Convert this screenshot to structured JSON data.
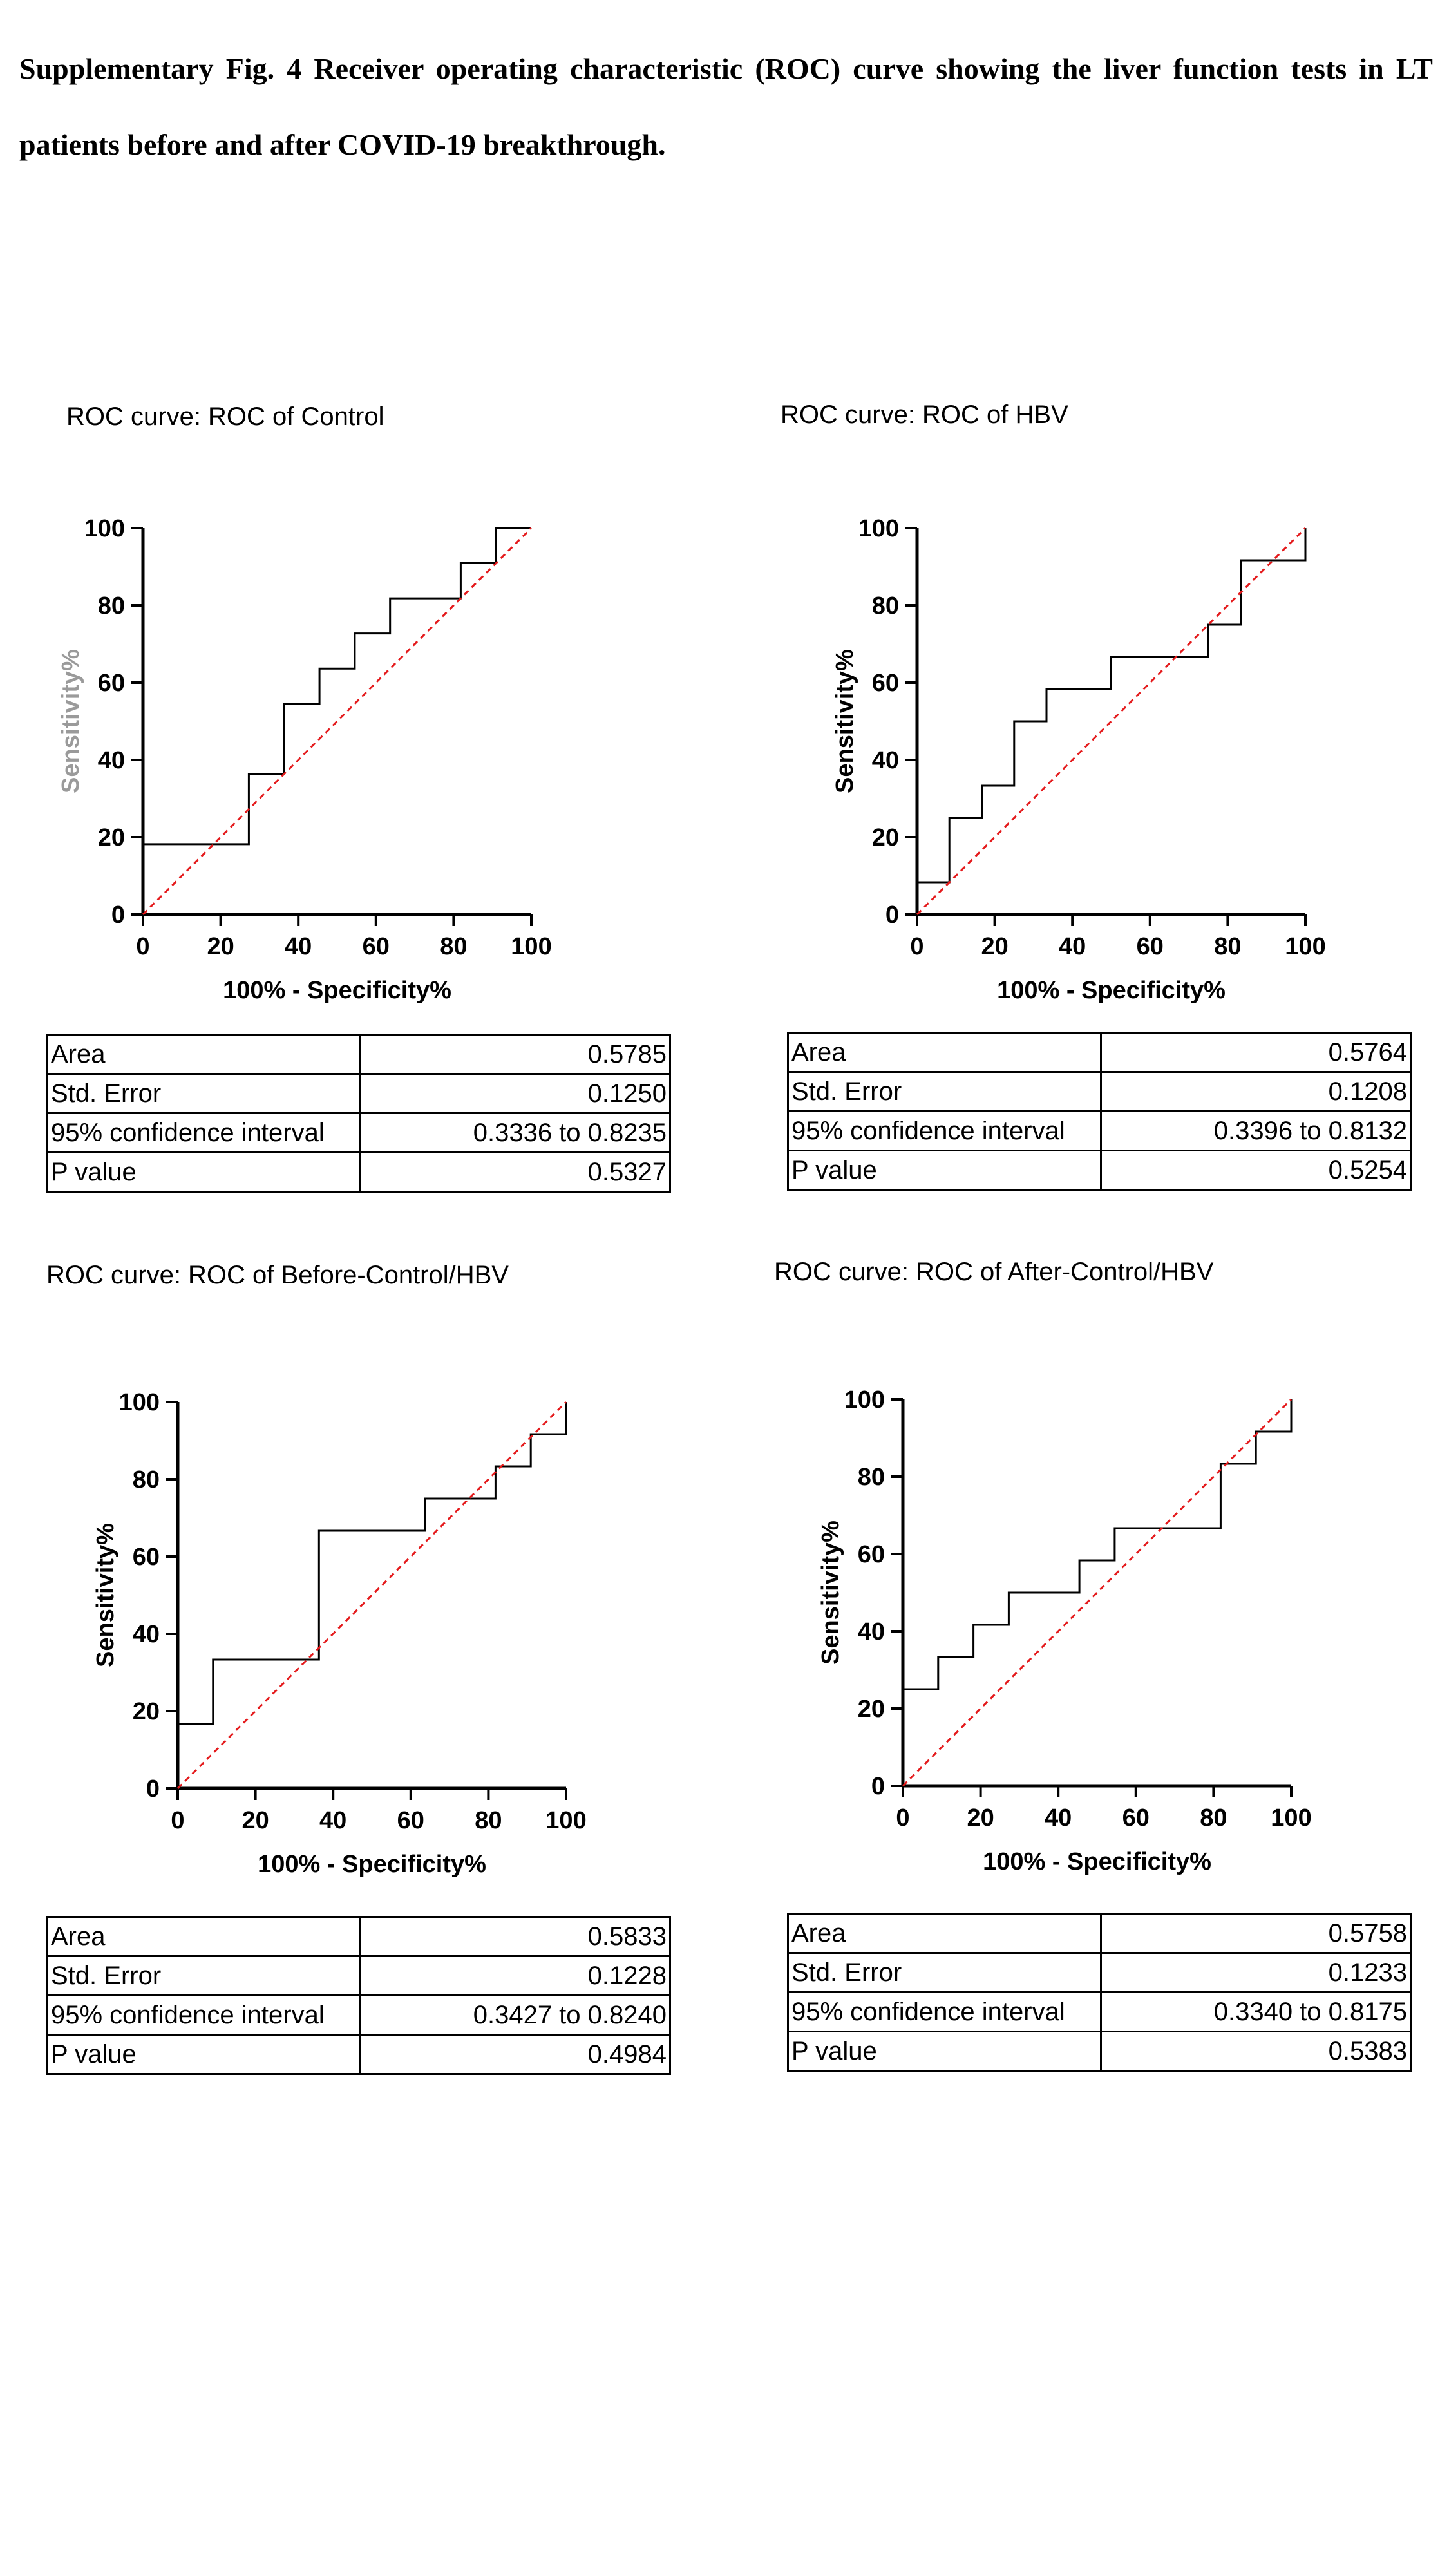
{
  "caption": "Supplementary Fig. 4 Receiver operating characteristic (ROC) curve showing the liver function tests in LT patients before and after COVID-19 breakthrough.",
  "colors": {
    "curve": "#000000",
    "reference": "#e41a1c"
  },
  "panels": [
    {
      "title": "ROC curve: ROC of Control",
      "stats": [
        {
          "label": "Area",
          "value": "0.5785"
        },
        {
          "label": "Std. Error",
          "value": "0.1250"
        },
        {
          "label": "95% confidence interval",
          "value": "0.3336 to 0.8235"
        },
        {
          "label": "P value",
          "value": "0.5327"
        }
      ]
    },
    {
      "title": "ROC curve: ROC of HBV",
      "stats": [
        {
          "label": "Area",
          "value": "0.5764"
        },
        {
          "label": "Std. Error",
          "value": "0.1208"
        },
        {
          "label": "95% confidence interval",
          "value": "0.3396 to 0.8132"
        },
        {
          "label": "P value",
          "value": "0.5254"
        }
      ]
    },
    {
      "title": "ROC curve: ROC of Before-Control/HBV",
      "stats": [
        {
          "label": "Area",
          "value": "0.5833"
        },
        {
          "label": "Std. Error",
          "value": "0.1228"
        },
        {
          "label": "95% confidence interval",
          "value": "0.3427 to 0.8240"
        },
        {
          "label": "P value",
          "value": "0.4984"
        }
      ]
    },
    {
      "title": "ROC curve: ROC of After-Control/HBV",
      "stats": [
        {
          "label": "Area",
          "value": "0.5758"
        },
        {
          "label": "Std. Error",
          "value": "0.1233"
        },
        {
          "label": "95% confidence interval",
          "value": "0.3340 to 0.8175"
        },
        {
          "label": "P value",
          "value": "0.5383"
        }
      ]
    }
  ],
  "chart_data": [
    {
      "type": "line",
      "title": "ROC curve: ROC of Control",
      "xlabel": "100% - Specificity%",
      "ylabel": "Sensitivity%",
      "xlim": [
        0,
        100
      ],
      "ylim": [
        0,
        100
      ],
      "xticks": [
        0,
        20,
        40,
        60,
        80,
        100
      ],
      "yticks": [
        0,
        20,
        40,
        60,
        80,
        100
      ],
      "grid": false,
      "series": [
        {
          "style": "step",
          "x": [
            0,
            27.27,
            27.27,
            36.36,
            36.36,
            45.45,
            45.45,
            54.55,
            54.55,
            63.64,
            63.64,
            81.82,
            81.82,
            90.91,
            90.91,
            100
          ],
          "y": [
            18.18,
            18.18,
            36.36,
            36.36,
            54.55,
            54.55,
            63.64,
            63.64,
            72.73,
            72.73,
            81.82,
            81.82,
            90.91,
            90.91,
            100,
            100
          ]
        },
        {
          "style": "dashed",
          "x": [
            0,
            100
          ],
          "y": [
            0,
            100
          ]
        }
      ]
    },
    {
      "type": "line",
      "title": "ROC curve: ROC of HBV",
      "xlabel": "100% - Specificity%",
      "ylabel": "Sensitivity%",
      "xlim": [
        0,
        100
      ],
      "ylim": [
        0,
        100
      ],
      "xticks": [
        0,
        20,
        40,
        60,
        80,
        100
      ],
      "yticks": [
        0,
        20,
        40,
        60,
        80,
        100
      ],
      "grid": false,
      "series": [
        {
          "style": "step",
          "x": [
            0,
            8.33,
            8.33,
            16.67,
            16.67,
            25,
            25,
            33.33,
            33.33,
            50,
            50,
            75,
            75,
            83.33,
            83.33,
            100,
            100
          ],
          "y": [
            8.33,
            8.33,
            25,
            25,
            33.33,
            33.33,
            50,
            50,
            58.33,
            58.33,
            66.67,
            66.67,
            75,
            75,
            91.67,
            91.67,
            100
          ]
        },
        {
          "style": "dashed",
          "x": [
            0,
            100
          ],
          "y": [
            0,
            100
          ]
        }
      ]
    },
    {
      "type": "line",
      "title": "ROC curve: ROC of Before-Control/HBV",
      "xlabel": "100% - Specificity%",
      "ylabel": "Sensitivity%",
      "xlim": [
        0,
        100
      ],
      "ylim": [
        0,
        100
      ],
      "xticks": [
        0,
        20,
        40,
        60,
        80,
        100
      ],
      "yticks": [
        0,
        20,
        40,
        60,
        80,
        100
      ],
      "grid": false,
      "series": [
        {
          "style": "step",
          "x": [
            0,
            9.09,
            9.09,
            36.36,
            36.36,
            63.64,
            63.64,
            81.82,
            81.82,
            90.91,
            90.91,
            100,
            100
          ],
          "y": [
            16.67,
            16.67,
            33.33,
            33.33,
            66.67,
            66.67,
            75,
            75,
            83.33,
            83.33,
            91.67,
            91.67,
            100
          ]
        },
        {
          "style": "dashed",
          "x": [
            0,
            100
          ],
          "y": [
            0,
            100
          ]
        }
      ]
    },
    {
      "type": "line",
      "title": "ROC curve: ROC of After-Control/HBV",
      "xlabel": "100% - Specificity%",
      "ylabel": "Sensitivity%",
      "xlim": [
        0,
        100
      ],
      "ylim": [
        0,
        100
      ],
      "xticks": [
        0,
        20,
        40,
        60,
        80,
        100
      ],
      "yticks": [
        0,
        20,
        40,
        60,
        80,
        100
      ],
      "grid": false,
      "series": [
        {
          "style": "step",
          "x": [
            0,
            9.09,
            9.09,
            18.18,
            18.18,
            27.27,
            27.27,
            45.45,
            45.45,
            54.55,
            54.55,
            81.82,
            81.82,
            90.91,
            90.91,
            100,
            100
          ],
          "y": [
            25,
            25,
            33.33,
            33.33,
            41.67,
            41.67,
            50,
            50,
            58.33,
            58.33,
            66.67,
            66.67,
            83.33,
            83.33,
            91.67,
            91.67,
            100
          ]
        },
        {
          "style": "dashed",
          "x": [
            0,
            100
          ],
          "y": [
            0,
            100
          ]
        }
      ]
    }
  ]
}
